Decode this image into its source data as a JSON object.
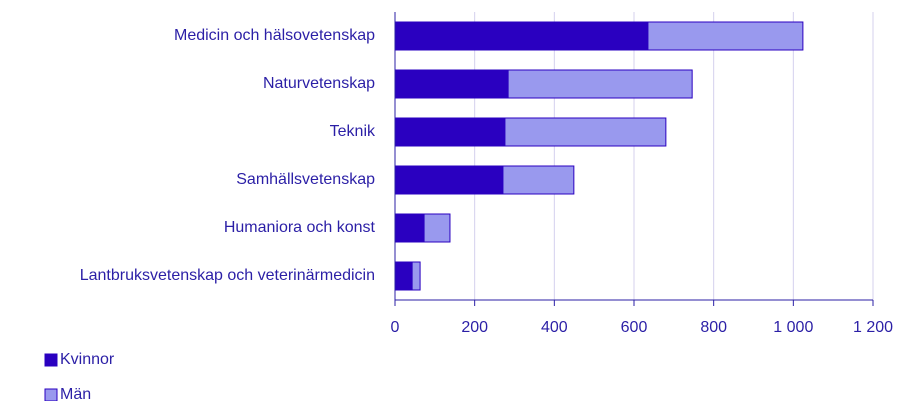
{
  "chart_data": {
    "type": "bar",
    "orientation": "horizontal",
    "stacked": true,
    "categories": [
      "Medicin och hälsovetenskap",
      "Naturvetenskap",
      "Teknik",
      "Samhällsvetenskap",
      "Humaniora och konst",
      "Lantbruksvetenskap och veterinärmedicin"
    ],
    "series": [
      {
        "name": "Kvinnor",
        "color": "#2a00c0",
        "values": [
          635,
          284,
          276,
          271,
          73,
          43
        ]
      },
      {
        "name": "Män",
        "color": "#9999ee",
        "values": [
          389,
          462,
          404,
          178,
          65,
          20
        ]
      }
    ],
    "xlim": [
      0,
      1200
    ],
    "xticks": [
      0,
      200,
      400,
      600,
      800,
      {
        "value": 1000,
        "label": "1 000"
      },
      {
        "value": 1200,
        "label": "1 200"
      }
    ],
    "grid": true,
    "legend": "bottom-left"
  }
}
